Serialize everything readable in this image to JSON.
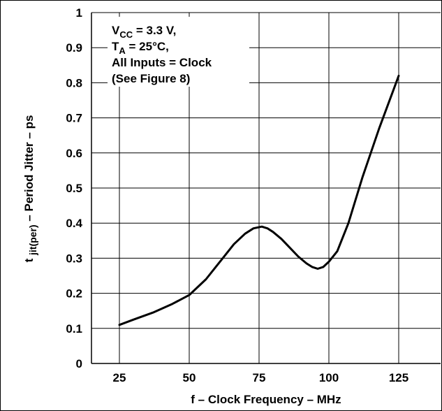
{
  "chart_data": {
    "type": "line",
    "title": "",
    "xlabel": "f – Clock Frequency – MHz",
    "ylabel": {
      "prefix": "t",
      "subscript": "jit(per)",
      "suffix": " – Period Jitter – ps"
    },
    "xlim": [
      15,
      140
    ],
    "ylim": [
      0,
      1
    ],
    "x_ticks": [
      25,
      50,
      75,
      100,
      125
    ],
    "y_ticks": [
      0,
      0.1,
      0.2,
      0.3,
      0.4,
      0.5,
      0.6,
      0.7,
      0.8,
      0.9,
      1
    ],
    "y_tick_labels": [
      "0",
      "0.1",
      "0.2",
      "0.3",
      "0.4",
      "0.5",
      "0.6",
      "0.7",
      "0.8",
      "0.9",
      "1"
    ],
    "x_tick_labels": [
      "25",
      "50",
      "75",
      "100",
      "125"
    ],
    "grid": true,
    "annotation_lines": [
      {
        "main": "V",
        "sub": "CC",
        "rest": " = 3.3 V,"
      },
      {
        "main": "T",
        "sub": "A",
        "rest": " = 25°C,"
      },
      {
        "main": "All Inputs = Clock",
        "sub": "",
        "rest": ""
      },
      {
        "main": "(See Figure 8)",
        "sub": "",
        "rest": ""
      }
    ],
    "series": [
      {
        "x": [
          25,
          30,
          37,
          44,
          50,
          56,
          62,
          66,
          70,
          73,
          76,
          78,
          80,
          83,
          86,
          89,
          92,
          94,
          96,
          98,
          100,
          103,
          107,
          112,
          118,
          125
        ],
        "y": [
          0.11,
          0.125,
          0.145,
          0.17,
          0.195,
          0.24,
          0.3,
          0.34,
          0.37,
          0.385,
          0.39,
          0.385,
          0.375,
          0.355,
          0.33,
          0.305,
          0.285,
          0.275,
          0.27,
          0.275,
          0.29,
          0.32,
          0.4,
          0.53,
          0.67,
          0.82
        ]
      }
    ]
  }
}
